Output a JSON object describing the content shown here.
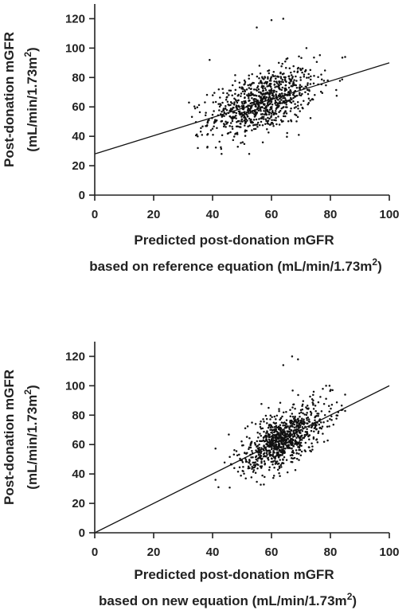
{
  "chart_data": [
    {
      "type": "scatter",
      "xlabel_line1": "Predicted post-donation mGFR",
      "xlabel_line2": "based on reference equation (mL/min/1.73m",
      "xlabel_sup": "2",
      "xlabel_close": ")",
      "ylabel_line1": "Post-donation mGFR",
      "ylabel_line2": "(mL/min/1.73m",
      "ylabel_sup": "2",
      "ylabel_close": ")",
      "xlim": [
        0,
        100
      ],
      "ylim": [
        0,
        130
      ],
      "xticks": [
        0,
        20,
        40,
        60,
        80,
        100
      ],
      "yticks": [
        0,
        20,
        40,
        60,
        80,
        100,
        120
      ],
      "fit_line": {
        "x": [
          0,
          100
        ],
        "y": [
          28,
          90
        ]
      },
      "cloud": {
        "n": 900,
        "x_mean": 57,
        "x_sd": 9,
        "x_min": 33,
        "x_max": 85,
        "y_intercept": 28,
        "y_slope": 0.62,
        "y_sd": 10
      },
      "outliers": [
        {
          "x": 55,
          "y": 114
        },
        {
          "x": 60,
          "y": 119
        },
        {
          "x": 64,
          "y": 120
        },
        {
          "x": 32,
          "y": 63
        },
        {
          "x": 35,
          "y": 32
        },
        {
          "x": 39,
          "y": 92
        },
        {
          "x": 85,
          "y": 94
        }
      ]
    },
    {
      "type": "scatter",
      "xlabel_line1": "Predicted post-donation mGFR",
      "xlabel_line2": "based on new equation (mL/min/1.73m",
      "xlabel_sup": "2",
      "xlabel_close": ")",
      "ylabel_line1": "Post-donation mGFR",
      "ylabel_line2": "(mL/min/1.73m",
      "ylabel_sup": "2",
      "ylabel_close": ")",
      "xlim": [
        0,
        100
      ],
      "ylim": [
        0,
        130
      ],
      "xticks": [
        0,
        20,
        40,
        60,
        80,
        100
      ],
      "yticks": [
        0,
        20,
        40,
        60,
        80,
        100,
        120
      ],
      "fit_line": {
        "x": [
          0,
          100
        ],
        "y": [
          0,
          100
        ]
      },
      "cloud": {
        "n": 900,
        "x_mean": 64,
        "x_sd": 7,
        "x_min": 41,
        "x_max": 85,
        "y_intercept": 0,
        "y_slope": 1.0,
        "y_sd": 9
      },
      "outliers": [
        {
          "x": 64,
          "y": 114
        },
        {
          "x": 67,
          "y": 120
        },
        {
          "x": 69,
          "y": 118
        },
        {
          "x": 42,
          "y": 31
        },
        {
          "x": 41,
          "y": 36
        },
        {
          "x": 85,
          "y": 94
        }
      ]
    }
  ]
}
